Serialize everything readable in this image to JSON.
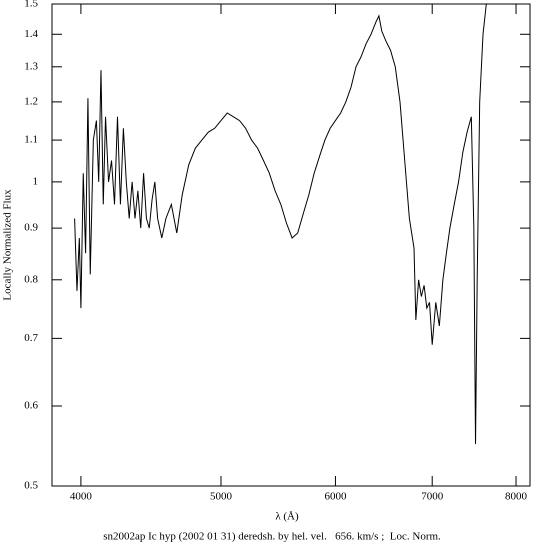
{
  "chart_data": {
    "type": "line",
    "xlabel": "λ (Å)",
    "ylabel": "Locally Normalized Flux",
    "footer": "sn2002ap Ic hyp (2002 01 31) deredsh. by hel. vel.   656. km/s ;  Loc. Norm.",
    "xscale": "log",
    "yscale": "log",
    "xlim": [
      3820,
      8180
    ],
    "ylim": [
      0.5,
      1.5
    ],
    "xticks": [
      4000,
      5000,
      6000,
      7000,
      8000
    ],
    "yticks": [
      0.5,
      0.6,
      0.7,
      0.8,
      0.9,
      1,
      1.1,
      1.2,
      1.3,
      1.4,
      1.5
    ],
    "x": [
      3960,
      3975,
      3990,
      4000,
      4015,
      4030,
      4045,
      4060,
      4080,
      4100,
      4115,
      4130,
      4145,
      4160,
      4180,
      4200,
      4220,
      4240,
      4260,
      4280,
      4300,
      4320,
      4340,
      4360,
      4380,
      4400,
      4420,
      4440,
      4460,
      4480,
      4500,
      4520,
      4550,
      4580,
      4620,
      4660,
      4700,
      4750,
      4800,
      4850,
      4900,
      4950,
      5000,
      5050,
      5100,
      5150,
      5200,
      5250,
      5300,
      5350,
      5400,
      5450,
      5500,
      5550,
      5600,
      5650,
      5700,
      5750,
      5800,
      5850,
      5900,
      5950,
      6000,
      6050,
      6100,
      6150,
      6200,
      6250,
      6300,
      6350,
      6400,
      6430,
      6460,
      6500,
      6550,
      6600,
      6650,
      6700,
      6750,
      6800,
      6820,
      6850,
      6880,
      6910,
      6940,
      6970,
      7000,
      7040,
      7080,
      7120,
      7160,
      7200,
      7250,
      7300,
      7350,
      7400,
      7450,
      7480,
      7500,
      7520,
      7550,
      7590,
      7630
    ],
    "series": [
      {
        "color": "#000000",
        "values": [
          0.92,
          0.78,
          0.88,
          0.75,
          1.02,
          0.85,
          1.21,
          0.81,
          1.1,
          1.15,
          1.0,
          1.29,
          0.95,
          1.16,
          1.0,
          1.05,
          0.95,
          1.16,
          0.95,
          1.13,
          1.0,
          0.92,
          1.0,
          0.92,
          0.98,
          0.9,
          1.02,
          0.92,
          0.9,
          0.96,
          1.0,
          0.92,
          0.88,
          0.92,
          0.95,
          0.89,
          0.97,
          1.04,
          1.08,
          1.1,
          1.12,
          1.13,
          1.15,
          1.17,
          1.16,
          1.15,
          1.13,
          1.1,
          1.08,
          1.05,
          1.02,
          0.98,
          0.95,
          0.91,
          0.88,
          0.89,
          0.93,
          0.97,
          1.02,
          1.06,
          1.1,
          1.13,
          1.15,
          1.17,
          1.2,
          1.24,
          1.3,
          1.33,
          1.37,
          1.4,
          1.44,
          1.46,
          1.41,
          1.38,
          1.35,
          1.3,
          1.2,
          1.05,
          0.92,
          0.86,
          0.73,
          0.8,
          0.77,
          0.79,
          0.75,
          0.76,
          0.69,
          0.76,
          0.72,
          0.8,
          0.85,
          0.9,
          0.95,
          1.0,
          1.07,
          1.12,
          1.16,
          0.9,
          0.55,
          0.8,
          1.2,
          1.4,
          1.5
        ]
      }
    ]
  }
}
